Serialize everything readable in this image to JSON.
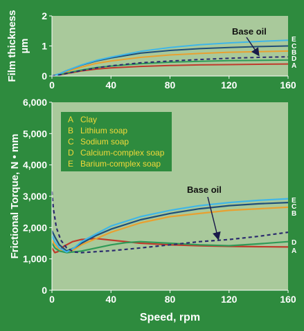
{
  "colors": {
    "background": "#2e8b3e",
    "plot_area": "#a9c99b",
    "legend_box": "#2e8b3e",
    "axis_text": "#ffffff",
    "legend_letters": "#f2d93a"
  },
  "chart_data": [
    {
      "type": "line",
      "title": "",
      "xlabel": "",
      "ylabel": "Film thickness, µm",
      "ylabel_lines": [
        "Film thickness",
        "µm"
      ],
      "xlim": [
        0,
        160
      ],
      "ylim": [
        0,
        2
      ],
      "xticks": [
        "0",
        "40",
        "80",
        "120",
        "160"
      ],
      "yticks": [
        "0",
        "1",
        "2"
      ],
      "grid": false,
      "annotations": [
        {
          "text": "Base oil",
          "points_to": "Base oil"
        }
      ],
      "end_labels": [
        "E",
        "C",
        "B",
        "D",
        "A"
      ],
      "series": [
        {
          "name": "Clay",
          "key": "A",
          "color": "#c0392b",
          "x": [
            0,
            5,
            10,
            20,
            30,
            40,
            60,
            80,
            100,
            120,
            140,
            160
          ],
          "y": [
            0,
            0.03,
            0.08,
            0.17,
            0.23,
            0.27,
            0.32,
            0.35,
            0.37,
            0.38,
            0.39,
            0.4
          ]
        },
        {
          "name": "Lithium soap",
          "key": "B",
          "color": "#e8a030",
          "x": [
            0,
            5,
            10,
            20,
            30,
            40,
            60,
            80,
            100,
            120,
            140,
            160
          ],
          "y": [
            0,
            0.06,
            0.15,
            0.3,
            0.42,
            0.5,
            0.62,
            0.7,
            0.75,
            0.79,
            0.81,
            0.83
          ]
        },
        {
          "name": "Sodium soap",
          "key": "C",
          "color": "#1f4e79",
          "x": [
            0,
            5,
            10,
            20,
            30,
            40,
            60,
            80,
            100,
            120,
            140,
            160
          ],
          "y": [
            0,
            0.07,
            0.18,
            0.36,
            0.5,
            0.6,
            0.76,
            0.85,
            0.91,
            0.95,
            0.98,
            1.0
          ]
        },
        {
          "name": "Calcium-complex soap",
          "key": "D",
          "color": "#2f9a57",
          "x": [
            0,
            5,
            10,
            20,
            30,
            40,
            60,
            80,
            100,
            120,
            140,
            160
          ],
          "y": [
            0,
            0.04,
            0.1,
            0.2,
            0.28,
            0.33,
            0.41,
            0.46,
            0.49,
            0.51,
            0.52,
            0.53
          ]
        },
        {
          "name": "Barium-complex soap",
          "key": "E",
          "color": "#3fb6e8",
          "x": [
            0,
            5,
            10,
            20,
            30,
            40,
            60,
            80,
            100,
            120,
            140,
            160
          ],
          "y": [
            0,
            0.07,
            0.18,
            0.37,
            0.52,
            0.63,
            0.82,
            0.95,
            1.04,
            1.1,
            1.15,
            1.19
          ]
        },
        {
          "name": "Base oil",
          "key": "",
          "color": "#2b2b6e",
          "dashed": true,
          "x": [
            0,
            5,
            10,
            20,
            30,
            40,
            60,
            80,
            100,
            120,
            140,
            160
          ],
          "y": [
            0,
            0.04,
            0.09,
            0.18,
            0.27,
            0.34,
            0.44,
            0.5,
            0.55,
            0.59,
            0.62,
            0.64
          ]
        }
      ]
    },
    {
      "type": "line",
      "title": "",
      "xlabel": "Speed, rpm",
      "ylabel": "Frictional Torque, N • mm",
      "xlim": [
        0,
        160
      ],
      "ylim": [
        0,
        6000
      ],
      "xticks": [
        "0",
        "40",
        "80",
        "120",
        "160"
      ],
      "yticks": [
        "0",
        "1,000",
        "2,000",
        "3,000",
        "4,000",
        "5,000",
        "6,000"
      ],
      "grid": false,
      "legend": {
        "position": "top-left",
        "entries": [
          {
            "key": "A",
            "label": "Clay"
          },
          {
            "key": "B",
            "label": "Lithium soap"
          },
          {
            "key": "C",
            "label": "Sodium soap"
          },
          {
            "key": "D",
            "label": "Calcium-complex soap"
          },
          {
            "key": "E",
            "label": "Barium-complex soap"
          }
        ]
      },
      "annotations": [
        {
          "text": "Base oil",
          "points_to": "Base oil"
        }
      ],
      "end_labels_top": [
        "E",
        "C",
        "B"
      ],
      "end_labels_bottom": [
        "D",
        "A"
      ],
      "series": [
        {
          "name": "Clay",
          "key": "A",
          "color": "#c0392b",
          "x": [
            0,
            2,
            4,
            8,
            14,
            20,
            30,
            40,
            50,
            60,
            80,
            100,
            120,
            140,
            160
          ],
          "y": [
            1350,
            1200,
            1230,
            1400,
            1550,
            1620,
            1650,
            1600,
            1550,
            1500,
            1450,
            1420,
            1400,
            1390,
            1380
          ]
        },
        {
          "name": "Lithium soap",
          "key": "B",
          "color": "#e8a030",
          "x": [
            0,
            2,
            5,
            10,
            15,
            20,
            30,
            40,
            60,
            80,
            100,
            120,
            140,
            160
          ],
          "y": [
            1600,
            1450,
            1300,
            1200,
            1300,
            1450,
            1650,
            1850,
            2150,
            2350,
            2450,
            2550,
            2600,
            2650
          ]
        },
        {
          "name": "Sodium soap",
          "key": "C",
          "color": "#1f4e79",
          "x": [
            0,
            2,
            5,
            10,
            15,
            20,
            30,
            40,
            60,
            80,
            100,
            120,
            140,
            160
          ],
          "y": [
            1900,
            1700,
            1450,
            1250,
            1350,
            1500,
            1750,
            1950,
            2250,
            2450,
            2600,
            2700,
            2760,
            2800
          ]
        },
        {
          "name": "Calcium-complex soap",
          "key": "D",
          "color": "#2f9a57",
          "x": [
            0,
            2,
            5,
            10,
            20,
            30,
            40,
            50,
            60,
            80,
            100,
            120,
            140,
            160
          ],
          "y": [
            1500,
            1350,
            1250,
            1200,
            1250,
            1350,
            1450,
            1520,
            1550,
            1500,
            1450,
            1420,
            1480,
            1550
          ]
        },
        {
          "name": "Barium-complex soap",
          "key": "E",
          "color": "#3fb6e8",
          "x": [
            0,
            2,
            5,
            10,
            15,
            20,
            30,
            40,
            60,
            80,
            100,
            120,
            140,
            160
          ],
          "y": [
            1750,
            1550,
            1350,
            1220,
            1350,
            1550,
            1800,
            2050,
            2350,
            2550,
            2700,
            2800,
            2870,
            2920
          ]
        },
        {
          "name": "Base oil",
          "key": "",
          "color": "#2b2b6e",
          "dashed": true,
          "x": [
            0,
            1,
            3,
            6,
            10,
            15,
            20,
            30,
            40,
            60,
            80,
            100,
            120,
            140,
            160
          ],
          "y": [
            3150,
            2600,
            2000,
            1600,
            1350,
            1220,
            1200,
            1230,
            1260,
            1350,
            1450,
            1550,
            1620,
            1720,
            1850
          ]
        }
      ]
    }
  ]
}
